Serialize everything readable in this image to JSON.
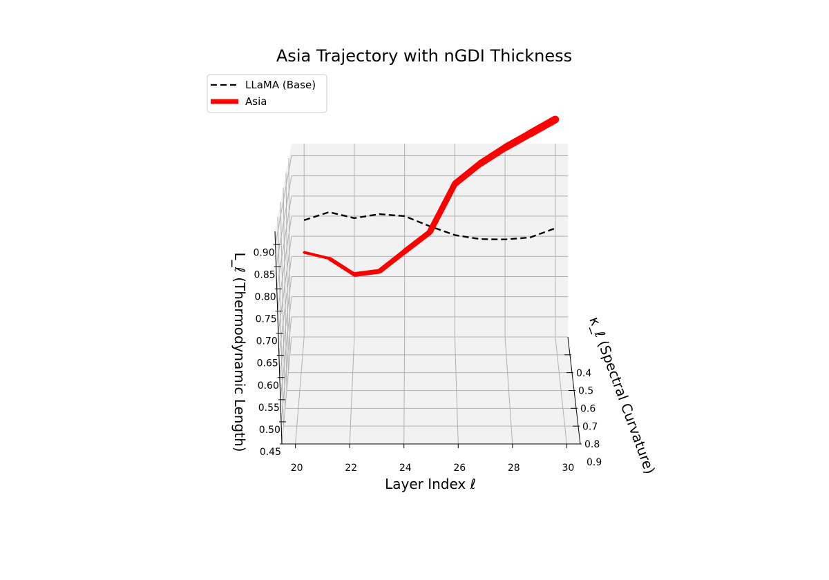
{
  "chart_data": {
    "type": "line",
    "projection": "3d",
    "title": "Asia Trajectory with nGDI Thickness",
    "xlabel": "Layer Index ℓ",
    "ylabel": "κ_ℓ (Spectral Curvature)",
    "zlabel": "L_ℓ (Thermodynamic Length)",
    "xlim": [
      19.5,
      30.5
    ],
    "ylim": [
      0.3,
      0.9
    ],
    "zlim": [
      0.45,
      0.93
    ],
    "x_ticks": [
      20,
      22,
      24,
      26,
      28,
      30
    ],
    "y_ticks": [
      0.4,
      0.5,
      0.6,
      0.7,
      0.8,
      0.9
    ],
    "z_ticks": [
      0.45,
      0.5,
      0.55,
      0.6,
      0.65,
      0.7,
      0.75,
      0.8,
      0.85,
      0.9
    ],
    "x_tick_labels": [
      "20",
      "22",
      "24",
      "26",
      "28",
      "30"
    ],
    "y_tick_labels": [
      "0.4",
      "0.5",
      "0.6",
      "0.7",
      "0.8",
      "0.9"
    ],
    "z_tick_labels": [
      "0.45",
      "0.50",
      "0.55",
      "0.60",
      "0.65",
      "0.70",
      "0.75",
      "0.80",
      "0.85",
      "0.90"
    ],
    "grid": true,
    "legend_position": "top-left",
    "series": [
      {
        "name": "LLaMA (Base)",
        "style": "dashed",
        "color": "#000000",
        "x": [
          20,
          21,
          22,
          23,
          24,
          25,
          26,
          27,
          28,
          29,
          30
        ],
        "z": [
          0.74,
          0.76,
          0.745,
          0.755,
          0.75,
          0.725,
          0.703,
          0.693,
          0.692,
          0.697,
          0.72
        ],
        "thickness": [
          1,
          1,
          1,
          1,
          1,
          1,
          1,
          1,
          1,
          1,
          1
        ]
      },
      {
        "name": "Asia",
        "style": "solid",
        "color": "#ff0000",
        "x": [
          20,
          21,
          22,
          23,
          24,
          25,
          26,
          27,
          28,
          29,
          30
        ],
        "z": [
          0.66,
          0.645,
          0.605,
          0.613,
          0.662,
          0.71,
          0.83,
          0.88,
          0.92,
          0.955,
          0.99
        ],
        "thickness": [
          0.6,
          0.8,
          1.1,
          1.2,
          1.3,
          1.4,
          1.5,
          1.6,
          1.7,
          1.8,
          1.9
        ]
      }
    ]
  },
  "colors": {
    "pane": "#f2f2f2",
    "grid": "#b0b0b0",
    "legend_border": "#cccccc"
  }
}
